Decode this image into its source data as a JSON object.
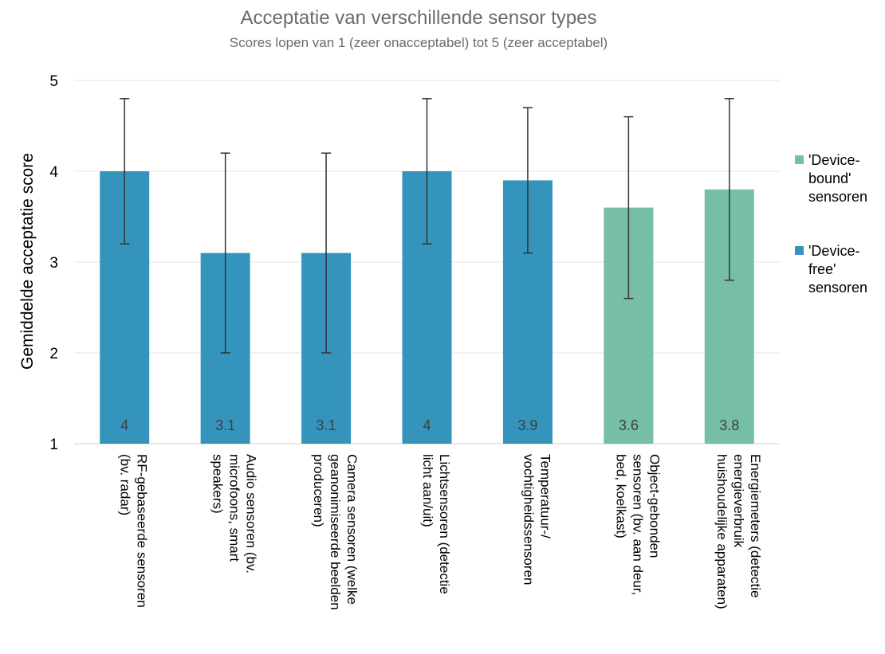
{
  "chart_data": {
    "type": "bar",
    "title": "Acceptatie van verschillende sensor types",
    "subtitle": "Scores lopen van 1 (zeer onacceptabel) tot 5 (zeer acceptabel)",
    "xlabel": "",
    "ylabel": "Gemiddelde acceptatie score",
    "ylim": [
      1,
      5
    ],
    "yticks": [
      "1",
      "2",
      "3",
      "4",
      "5"
    ],
    "grid": true,
    "legend_position": "right",
    "series": [
      {
        "name": "'Device-bound' sensoren",
        "legend_lines": [
          "'Device-",
          "bound'",
          "sensoren"
        ],
        "color": "#76BEA6"
      },
      {
        "name": "'Device-free' sensoren",
        "legend_lines": [
          "'Device-",
          "free'",
          "sensoren"
        ],
        "color": "#3494BC"
      }
    ],
    "categories": [
      {
        "lines": [
          "RF-gebaseerde sensoren",
          "(bv. radar)"
        ],
        "value": 4,
        "label": "4",
        "error_low": 3.2,
        "error_high": 4.8,
        "series": "'Device-free' sensoren"
      },
      {
        "lines": [
          "Audio sensoren (bv.",
          "microfoons, smart",
          "speakers)"
        ],
        "value": 3.1,
        "label": "3.1",
        "error_low": 2.0,
        "error_high": 4.2,
        "series": "'Device-free' sensoren"
      },
      {
        "lines": [
          "Camera sensoren (welke",
          "geanonimiseerde beelden",
          "produceren)"
        ],
        "value": 3.1,
        "label": "3.1",
        "error_low": 2.0,
        "error_high": 4.2,
        "series": "'Device-free' sensoren"
      },
      {
        "lines": [
          "Lichtsensoren (detectie",
          "licht aan/uit)"
        ],
        "value": 4,
        "label": "4",
        "error_low": 3.2,
        "error_high": 4.8,
        "series": "'Device-free' sensoren"
      },
      {
        "lines": [
          "Temperatuur-/",
          "vochtigheidssensoren"
        ],
        "value": 3.9,
        "label": "3.9",
        "error_low": 3.1,
        "error_high": 4.7,
        "series": "'Device-free' sensoren"
      },
      {
        "lines": [
          "Object-gebonden",
          "sensoren (bv. aan deur,",
          "bed, koelkast)"
        ],
        "value": 3.6,
        "label": "3.6",
        "error_low": 2.6,
        "error_high": 4.6,
        "series": "'Device-bound' sensoren"
      },
      {
        "lines": [
          "Energiemeters (detectie",
          "energieverbruik",
          "huishoudelijke apparaten)"
        ],
        "value": 3.8,
        "label": "3.8",
        "error_low": 2.8,
        "error_high": 4.8,
        "series": "'Device-bound' sensoren"
      }
    ]
  }
}
